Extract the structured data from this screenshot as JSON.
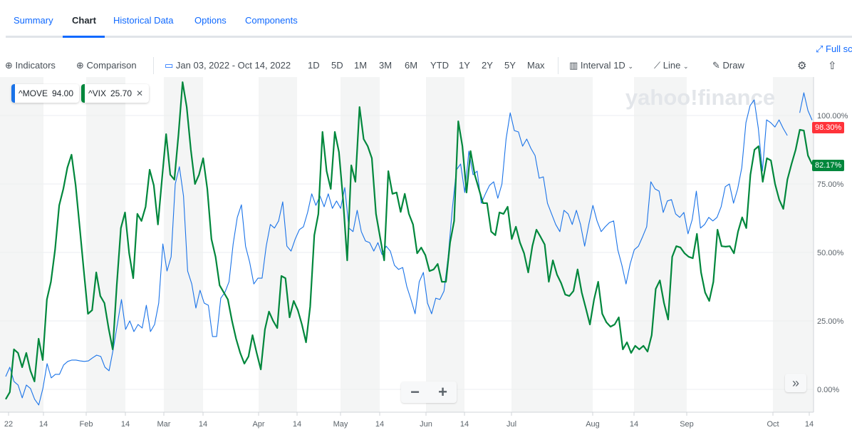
{
  "tabs": [
    {
      "label": "Summary"
    },
    {
      "label": "Chart",
      "active": true
    },
    {
      "label": "Historical Data"
    },
    {
      "label": "Options"
    },
    {
      "label": "Components"
    }
  ],
  "fullscreen_label": "Full sc",
  "toolbar": {
    "indicators": "Indicators",
    "comparison": "Comparison",
    "date_range": "Jan 03, 2022 - Oct 14, 2022",
    "ranges": [
      "1D",
      "5D",
      "1M",
      "3M",
      "6M",
      "YTD",
      "1Y",
      "2Y",
      "5Y",
      "Max"
    ],
    "interval_label": "Interval",
    "interval_value": "1D",
    "chart_type": "Line",
    "draw": "Draw"
  },
  "watermark": "yahoo!finance",
  "legend": [
    {
      "symbol": "^MOVE",
      "value": "94.00",
      "color": "#1a73e8"
    },
    {
      "symbol": "^VIX",
      "value": "25.70",
      "color": "#00873c"
    }
  ],
  "zoom": {
    "minus": "−",
    "plus": "+"
  },
  "scroll_label": "»",
  "chart_data": {
    "type": "line",
    "x_range": [
      "Jan 03, 2022",
      "Oct 14, 2022"
    ],
    "x_ticks": [
      "22",
      "14",
      "Feb",
      "14",
      "Mar",
      "14",
      "Apr",
      "14",
      "May",
      "14",
      "Jun",
      "14",
      "Jul",
      "Aug",
      "14",
      "Sep",
      "Oct",
      "14"
    ],
    "y_ticks": [
      "0.00%",
      "25.00%",
      "50.00%",
      "75.00%",
      "100.00%"
    ],
    "ylim": [
      -8,
      115
    ],
    "grid": true,
    "end_labels": [
      {
        "text": "98.30%",
        "color": "#ff333a"
      },
      {
        "text": "82.17%",
        "color": "#00873c"
      }
    ],
    "series": [
      {
        "name": "^MOVE",
        "color": "#1a73e8",
        "values": [
          4.7,
          8.1,
          2.9,
          1.6,
          -3.1,
          1.6,
          0.3,
          -3.6,
          -5.7,
          0.3,
          9.4,
          4.2,
          5.5,
          5.5,
          8.9,
          10.2,
          10.7,
          10.7,
          10.4,
          10.2,
          10.4,
          11.5,
          12.5,
          12,
          8.1,
          6.8,
          14.6,
          23.7,
          32.8,
          21.9,
          25,
          21.1,
          23.7,
          22.4,
          30.7,
          21.1,
          23.7,
          31.5,
          53.1,
          43.2,
          48.4,
          75,
          81.3,
          70.6,
          43.2,
          38.5,
          29.7,
          36.2,
          31.5,
          30.7,
          19.3,
          19.3,
          33.3,
          35.4,
          39.3,
          53.1,
          62.8,
          67.4,
          52.3,
          46.4,
          38.5,
          40.6,
          40.6,
          52.3,
          60.2,
          58.9,
          61.5,
          68.5,
          52.3,
          50.5,
          54.9,
          58.3,
          59.4,
          64.6,
          71.4,
          67.2,
          70.6,
          66.7,
          71.4,
          66.1,
          68.8,
          66.1,
          73.7,
          58.9,
          57.6,
          65.4,
          57.6,
          54.2,
          53.6,
          50.5,
          53.6,
          49.2,
          52.3,
          50.5,
          45.3,
          43.8,
          44.5,
          37.5,
          32.8,
          27.6,
          39.3,
          42.7,
          31.5,
          27.6,
          33.3,
          32.8,
          35.9,
          48.4,
          66.1,
          80.2,
          82.3,
          71.9,
          87,
          78.4,
          79.7,
          68,
          71.4,
          74.5,
          75.8,
          69.8,
          75,
          91.4,
          101,
          94.5,
          94,
          88.8,
          91.4,
          88,
          85.4,
          77.1,
          77.6,
          68,
          64.1,
          60.2,
          57.6,
          65.4,
          64.1,
          60.2,
          65.4,
          60.2,
          52.3,
          60.2,
          67.2,
          61.5,
          57.6,
          59.4,
          60.9,
          61.5,
          51,
          45.3,
          38.5,
          45.8,
          51,
          52.3,
          55.7,
          59.4,
          75.8,
          73.2,
          72.4,
          64.6,
          68.8,
          69.3,
          64.1,
          62.8,
          64.6,
          56.8,
          62,
          72.4,
          58.9,
          60.2,
          62.8,
          61.5,
          62.8,
          66.7,
          74,
          75,
          68,
          73.2,
          81,
          97.4,
          103.6,
          105.7,
          95.3,
          79.7,
          98.4,
          97.4,
          95.8,
          98.4,
          95.3,
          92.7,
          null,
          null,
          101,
          108.3,
          101.8,
          98.3
        ]
      },
      {
        "name": "^VIX",
        "color": "#00873c",
        "values": [
          -3.6,
          -1,
          14.6,
          13.3,
          8.1,
          13.3,
          6.8,
          2.9,
          18.5,
          10.7,
          32.8,
          39.3,
          51,
          67.2,
          73.2,
          81,
          85.7,
          74.5,
          58.9,
          43.2,
          27.6,
          28.9,
          42.7,
          34.1,
          31.5,
          22.4,
          14.6,
          38,
          58.9,
          64.6,
          49.7,
          40.6,
          64.1,
          61.5,
          66.7,
          80.2,
          74.5,
          60.2,
          77.1,
          93.2,
          78.4,
          76.6,
          93.2,
          112.2,
          103.1,
          87.5,
          75,
          78.4,
          84.4,
          73.2,
          54.9,
          48.4,
          38,
          35.4,
          32.8,
          25,
          18.5,
          13.3,
          9.4,
          12,
          19.8,
          13.3,
          7.3,
          21.9,
          28.4,
          25,
          22.4,
          41.4,
          40.6,
          26.3,
          32.3,
          28.9,
          23.7,
          17.2,
          30.2,
          56.3,
          64.1,
          94,
          79.7,
          73.2,
          94,
          86.7,
          69.3,
          47.1,
          81.8,
          75.8,
          103.1,
          91.4,
          88.8,
          84.4,
          64.1,
          55.5,
          47.1,
          79.7,
          71.4,
          71.9,
          64.8,
          71.4,
          64.1,
          60.2,
          49.7,
          51.8,
          49,
          43.2,
          43.8,
          45.8,
          39.3,
          39.3,
          53.6,
          61.5,
          97.9,
          88.8,
          71.9,
          87,
          78.4,
          73.2,
          68,
          68,
          57.6,
          56.3,
          64.6,
          64.1,
          66.7,
          54.9,
          59.4,
          53.6,
          49.7,
          42.7,
          52.3,
          58.3,
          55.7,
          52.9,
          39.3,
          47.1,
          41.9,
          38.8,
          34.6,
          34.1,
          35.9,
          43.8,
          35.4,
          29.7,
          23.7,
          32.8,
          39.3,
          27.6,
          24.5,
          22.9,
          23.7,
          26.3,
          14.6,
          17.2,
          13.3,
          15.9,
          14.6,
          15.9,
          13.8,
          19.8,
          36.7,
          39.8,
          31.5,
          25.5,
          48.4,
          52.3,
          51.8,
          49.7,
          48.4,
          47.9,
          56.8,
          42.7,
          35.4,
          32.3,
          39.3,
          58.3,
          52.3,
          52.1,
          52.3,
          49.7,
          57.6,
          62.8,
          58.9,
          78.4,
          87.5,
          88.8,
          75.8,
          84.4,
          83.6,
          75,
          69.3,
          65.9,
          76.6,
          82.3,
          87.5,
          94.8,
          94.5,
          85.4,
          82.2
        ]
      }
    ]
  }
}
